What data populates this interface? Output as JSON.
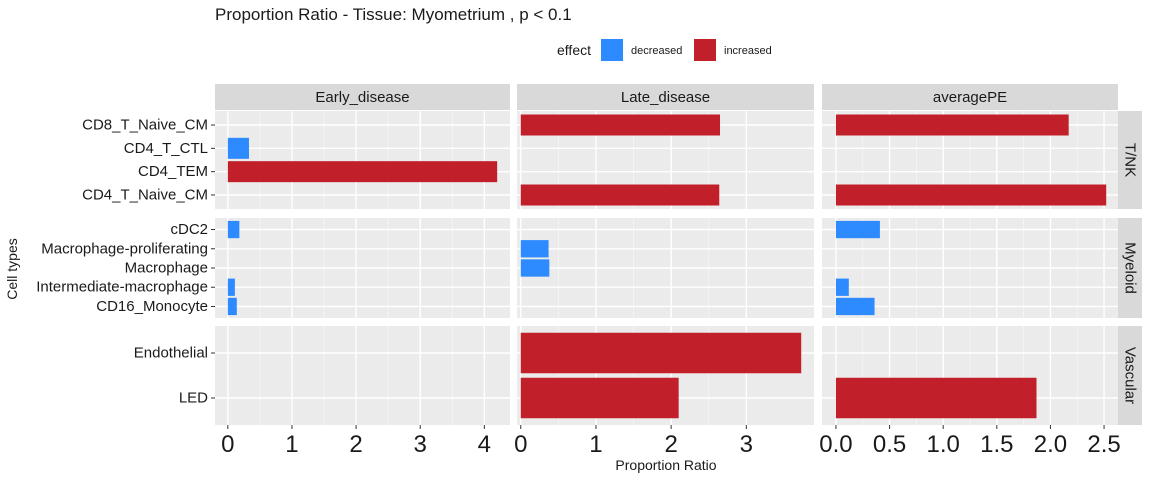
{
  "chart_data": {
    "type": "bar",
    "orientation": "horizontal",
    "title": "Proportion Ratio - Tissue: Myometrium , p < 0.1",
    "xlabel": "Proportion Ratio",
    "ylabel": "Cell types",
    "legend": {
      "title": "effect",
      "position": "top",
      "entries": [
        {
          "name": "decreased",
          "color": "#2E8BFF"
        },
        {
          "name": "increased",
          "color": "#C11F29"
        }
      ]
    },
    "grid": true,
    "columns": [
      {
        "name": "Early_disease",
        "xlim": [
          -0.2,
          4.4
        ],
        "ticks": [
          "0",
          "1",
          "2",
          "3",
          "4"
        ],
        "tick_values": [
          0,
          1,
          2,
          3,
          4
        ]
      },
      {
        "name": "Late_disease",
        "xlim": [
          -0.05,
          3.9
        ],
        "ticks": [
          "0",
          "1",
          "2",
          "3"
        ],
        "tick_values": [
          0,
          1,
          2,
          3
        ]
      },
      {
        "name": "averagePE",
        "xlim": [
          -0.13,
          2.63
        ],
        "ticks": [
          "0.0",
          "0.5",
          "1.0",
          "1.5",
          "2.0",
          "2.5"
        ],
        "tick_values": [
          0,
          0.5,
          1,
          1.5,
          2,
          2.5
        ]
      }
    ],
    "rows": [
      {
        "name": "T/NK",
        "categories": [
          "CD8_T_Naive_CM",
          "CD4_T_CTL",
          "CD4_TEM",
          "CD4_T_Naive_CM"
        ]
      },
      {
        "name": "Myeloid",
        "categories": [
          "cDC2",
          "Macrophage-proliferating",
          "Macrophage",
          "Intermediate-macrophage",
          "CD16_Monocyte"
        ]
      },
      {
        "name": "Vascular",
        "categories": [
          "Endothelial",
          "LED"
        ]
      }
    ],
    "bars": [
      {
        "row": "T/NK",
        "column": "Early_disease",
        "category": "CD4_T_CTL",
        "value": 0.33,
        "effect": "decreased"
      },
      {
        "row": "T/NK",
        "column": "Early_disease",
        "category": "CD4_TEM",
        "value": 4.2,
        "effect": "increased"
      },
      {
        "row": "T/NK",
        "column": "Late_disease",
        "category": "CD8_T_Naive_CM",
        "value": 2.65,
        "effect": "increased"
      },
      {
        "row": "T/NK",
        "column": "Late_disease",
        "category": "CD4_T_Naive_CM",
        "value": 2.64,
        "effect": "increased"
      },
      {
        "row": "T/NK",
        "column": "averagePE",
        "category": "CD8_T_Naive_CM",
        "value": 2.17,
        "effect": "increased"
      },
      {
        "row": "T/NK",
        "column": "averagePE",
        "category": "CD4_T_Naive_CM",
        "value": 2.52,
        "effect": "increased"
      },
      {
        "row": "Myeloid",
        "column": "Early_disease",
        "category": "cDC2",
        "value": 0.18,
        "effect": "decreased"
      },
      {
        "row": "Myeloid",
        "column": "Early_disease",
        "category": "Intermediate-macrophage",
        "value": 0.11,
        "effect": "decreased"
      },
      {
        "row": "Myeloid",
        "column": "Early_disease",
        "category": "CD16_Monocyte",
        "value": 0.14,
        "effect": "decreased"
      },
      {
        "row": "Myeloid",
        "column": "Late_disease",
        "category": "Macrophage-proliferating",
        "value": 0.37,
        "effect": "decreased"
      },
      {
        "row": "Myeloid",
        "column": "Late_disease",
        "category": "Macrophage",
        "value": 0.38,
        "effect": "decreased"
      },
      {
        "row": "Myeloid",
        "column": "averagePE",
        "category": "cDC2",
        "value": 0.41,
        "effect": "decreased"
      },
      {
        "row": "Myeloid",
        "column": "averagePE",
        "category": "Intermediate-macrophage",
        "value": 0.12,
        "effect": "decreased"
      },
      {
        "row": "Myeloid",
        "column": "averagePE",
        "category": "CD16_Monocyte",
        "value": 0.36,
        "effect": "decreased"
      },
      {
        "row": "Vascular",
        "column": "Late_disease",
        "category": "Endothelial",
        "value": 3.73,
        "effect": "increased"
      },
      {
        "row": "Vascular",
        "column": "Late_disease",
        "category": "LED",
        "value": 2.1,
        "effect": "increased"
      },
      {
        "row": "Vascular",
        "column": "averagePE",
        "category": "LED",
        "value": 1.87,
        "effect": "increased"
      }
    ]
  }
}
